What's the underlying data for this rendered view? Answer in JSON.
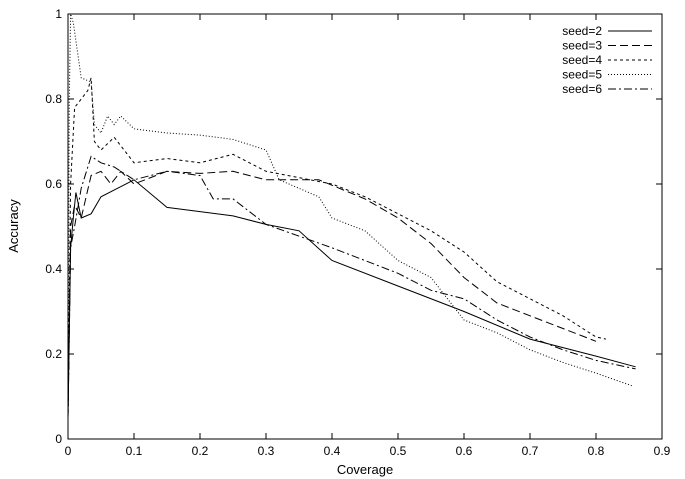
{
  "chart_data": {
    "type": "line",
    "title": "",
    "xlabel": "Coverage",
    "ylabel": "Accuracy",
    "xlim": [
      0,
      0.9
    ],
    "ylim": [
      0,
      1
    ],
    "xticks": [
      0,
      0.1,
      0.2,
      0.3,
      0.4,
      0.5,
      0.6,
      0.7,
      0.8,
      0.9
    ],
    "xtick_labels": [
      "0",
      "0.1",
      "0.2",
      "0.3",
      "0.4",
      "0.5",
      "0.6",
      "0.7",
      "0.8",
      "0.9"
    ],
    "yticks": [
      0,
      0.2,
      0.4,
      0.6,
      0.8,
      1
    ],
    "ytick_labels": [
      "0",
      "0.2",
      "0.4",
      "0.6",
      "0.8",
      "1"
    ],
    "grid": false,
    "legend_position": "top-right",
    "series": [
      {
        "name": "seed=2",
        "dash": "solid",
        "points": [
          [
            0,
            0.05
          ],
          [
            0.004,
            0.45
          ],
          [
            0.008,
            0.52
          ],
          [
            0.012,
            0.58
          ],
          [
            0.02,
            0.52
          ],
          [
            0.035,
            0.53
          ],
          [
            0.05,
            0.57
          ],
          [
            0.075,
            0.59
          ],
          [
            0.1,
            0.61
          ],
          [
            0.15,
            0.545
          ],
          [
            0.2,
            0.535
          ],
          [
            0.25,
            0.525
          ],
          [
            0.3,
            0.505
          ],
          [
            0.35,
            0.49
          ],
          [
            0.4,
            0.42
          ],
          [
            0.5,
            0.36
          ],
          [
            0.6,
            0.3
          ],
          [
            0.7,
            0.235
          ],
          [
            0.8,
            0.195
          ],
          [
            0.86,
            0.17
          ]
        ]
      },
      {
        "name": "seed=3",
        "dash": "dashed",
        "points": [
          [
            0,
            0.05
          ],
          [
            0.004,
            0.5
          ],
          [
            0.01,
            0.55
          ],
          [
            0.02,
            0.52
          ],
          [
            0.035,
            0.62
          ],
          [
            0.05,
            0.63
          ],
          [
            0.065,
            0.6
          ],
          [
            0.08,
            0.63
          ],
          [
            0.1,
            0.6
          ],
          [
            0.15,
            0.63
          ],
          [
            0.2,
            0.625
          ],
          [
            0.25,
            0.63
          ],
          [
            0.3,
            0.61
          ],
          [
            0.38,
            0.61
          ],
          [
            0.45,
            0.565
          ],
          [
            0.5,
            0.52
          ],
          [
            0.55,
            0.46
          ],
          [
            0.6,
            0.38
          ],
          [
            0.65,
            0.32
          ],
          [
            0.7,
            0.29
          ],
          [
            0.75,
            0.26
          ],
          [
            0.8,
            0.23
          ]
        ]
      },
      {
        "name": "seed=4",
        "dash": "short-dashed",
        "points": [
          [
            0,
            0.05
          ],
          [
            0.004,
            0.6
          ],
          [
            0.01,
            0.78
          ],
          [
            0.02,
            0.8
          ],
          [
            0.03,
            0.82
          ],
          [
            0.035,
            0.85
          ],
          [
            0.04,
            0.7
          ],
          [
            0.05,
            0.68
          ],
          [
            0.07,
            0.71
          ],
          [
            0.1,
            0.65
          ],
          [
            0.15,
            0.66
          ],
          [
            0.2,
            0.65
          ],
          [
            0.25,
            0.67
          ],
          [
            0.3,
            0.63
          ],
          [
            0.4,
            0.6
          ],
          [
            0.45,
            0.57
          ],
          [
            0.5,
            0.53
          ],
          [
            0.55,
            0.49
          ],
          [
            0.6,
            0.44
          ],
          [
            0.65,
            0.37
          ],
          [
            0.7,
            0.33
          ],
          [
            0.75,
            0.29
          ],
          [
            0.8,
            0.24
          ],
          [
            0.815,
            0.235
          ]
        ]
      },
      {
        "name": "seed=5",
        "dash": "dotted",
        "points": [
          [
            0,
            0.05
          ],
          [
            0.002,
            0.8
          ],
          [
            0.004,
            1.0
          ],
          [
            0.008,
            0.98
          ],
          [
            0.02,
            0.85
          ],
          [
            0.035,
            0.84
          ],
          [
            0.04,
            0.74
          ],
          [
            0.05,
            0.72
          ],
          [
            0.06,
            0.76
          ],
          [
            0.07,
            0.74
          ],
          [
            0.08,
            0.76
          ],
          [
            0.1,
            0.73
          ],
          [
            0.15,
            0.72
          ],
          [
            0.2,
            0.715
          ],
          [
            0.25,
            0.705
          ],
          [
            0.3,
            0.68
          ],
          [
            0.32,
            0.61
          ],
          [
            0.38,
            0.57
          ],
          [
            0.4,
            0.52
          ],
          [
            0.45,
            0.49
          ],
          [
            0.5,
            0.42
          ],
          [
            0.55,
            0.38
          ],
          [
            0.6,
            0.28
          ],
          [
            0.65,
            0.25
          ],
          [
            0.7,
            0.21
          ],
          [
            0.75,
            0.18
          ],
          [
            0.8,
            0.155
          ],
          [
            0.855,
            0.125
          ]
        ]
      },
      {
        "name": "seed=6",
        "dash": "dash-dot",
        "points": [
          [
            0,
            0.05
          ],
          [
            0.004,
            0.45
          ],
          [
            0.01,
            0.5
          ],
          [
            0.02,
            0.59
          ],
          [
            0.035,
            0.665
          ],
          [
            0.05,
            0.65
          ],
          [
            0.07,
            0.64
          ],
          [
            0.1,
            0.61
          ],
          [
            0.15,
            0.63
          ],
          [
            0.2,
            0.62
          ],
          [
            0.22,
            0.565
          ],
          [
            0.25,
            0.565
          ],
          [
            0.3,
            0.505
          ],
          [
            0.4,
            0.45
          ],
          [
            0.5,
            0.39
          ],
          [
            0.55,
            0.35
          ],
          [
            0.6,
            0.33
          ],
          [
            0.65,
            0.28
          ],
          [
            0.7,
            0.24
          ],
          [
            0.75,
            0.21
          ],
          [
            0.8,
            0.185
          ],
          [
            0.86,
            0.165
          ]
        ]
      }
    ]
  }
}
